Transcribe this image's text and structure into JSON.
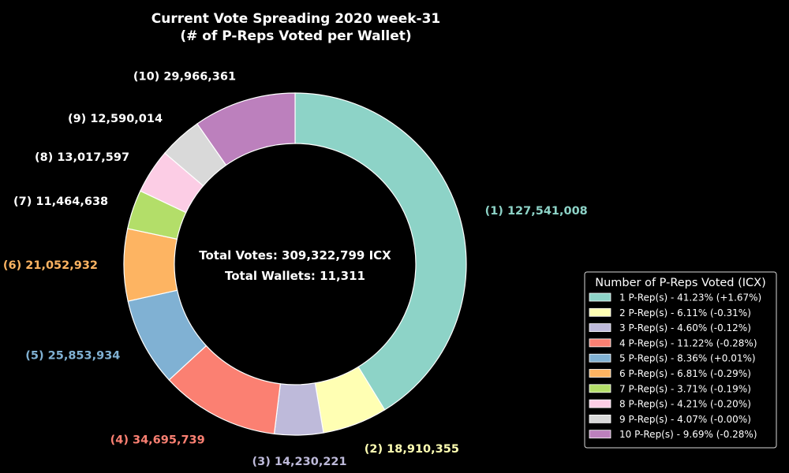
{
  "chart_data": {
    "type": "pie",
    "style": "donut",
    "title_line1": "Current Vote Spreading 2020 week-31",
    "title_line2": "(# of P-Reps Voted per Wallet)",
    "center_line1": "Total Votes: 309,322,799 ICX",
    "center_line2": "Total Wallets: 11,311",
    "legend_title": "Number of P-Reps Voted (ICX)",
    "legend_placement": "right",
    "slices": [
      {
        "label": "(1) 127,541,008",
        "value": 127541008,
        "color": "#8dd3c7",
        "legend": "1 P-Rep(s) - 41.23% (+1.67%)"
      },
      {
        "label": "(2) 18,910,355",
        "value": 18910355,
        "color": "#ffffb3",
        "legend": "2 P-Rep(s) - 6.11% (-0.31%)"
      },
      {
        "label": "(3) 14,230,221",
        "value": 14230221,
        "color": "#bebada",
        "legend": "3 P-Rep(s) - 4.60% (-0.12%)"
      },
      {
        "label": "(4) 34,695,739",
        "value": 34695739,
        "color": "#fb8072",
        "legend": "4 P-Rep(s) - 11.22% (-0.28%)"
      },
      {
        "label": "(5) 25,853,934",
        "value": 25853934,
        "color": "#80b1d3",
        "legend": "5 P-Rep(s) - 8.36% (+0.01%)"
      },
      {
        "label": "(6) 21,052,932",
        "value": 21052932,
        "color": "#fdb462",
        "legend": "6 P-Rep(s) - 6.81% (-0.29%)"
      },
      {
        "label": "(7) 11,464,638",
        "value": 11464638,
        "color": "#b3de69",
        "legend": "7 P-Rep(s) - 3.71% (-0.19%)"
      },
      {
        "label": "(8) 13,017,597",
        "value": 13017597,
        "color": "#fccde5",
        "legend": "8 P-Rep(s) - 4.21% (-0.20%)"
      },
      {
        "label": "(9) 12,590,014",
        "value": 12590014,
        "color": "#d9d9d9",
        "legend": "9 P-Rep(s) - 4.07% (-0.00%)"
      },
      {
        "label": "(10) 29,966,361",
        "value": 29966361,
        "color": "#bc80bd",
        "legend": "10 P-Rep(s) - 9.69% (-0.28%)"
      }
    ]
  }
}
